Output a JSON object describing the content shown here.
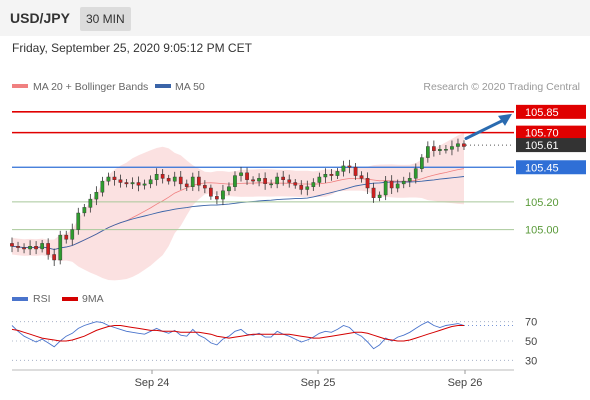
{
  "header": {
    "pair": "USD/JPY",
    "timeframe": "30 MIN"
  },
  "date_text": "Friday, September 25, 2020 9:05:12 PM CET",
  "legend": {
    "ma20_label": "MA 20 + Bollinger Bands",
    "ma50_label": "MA 50",
    "source": "Research © 2020 Trading Central"
  },
  "rsi_legend": {
    "rsi_label": "RSI",
    "ma_label": "9MA"
  },
  "colors": {
    "resistance": "#e00000",
    "support": "#2f6fd6",
    "target": "#2a6bb0",
    "green": "#5a9a3a",
    "bollinger": "#f8c8c8",
    "ma20": "#f08080",
    "ma50": "#3a64a8",
    "bull": "#2e9b2e",
    "bear": "#cc2020",
    "rsi": "#4a74cc",
    "rsi_ma": "#d40000"
  },
  "chart_data": [
    {
      "type": "candlestick",
      "ylim": [
        104.6,
        105.95
      ],
      "x_tick_labels": [
        "Sep 24",
        "Sep 25",
        "Sep 26"
      ],
      "levels": [
        {
          "value": 105.85,
          "label": "105.85",
          "style": "resistance"
        },
        {
          "value": 105.7,
          "label": "105.70",
          "style": "resistance"
        },
        {
          "value": 105.61,
          "label": "105.61",
          "style": "last"
        },
        {
          "value": 105.45,
          "label": "105.45",
          "style": "support"
        },
        {
          "value": 105.2,
          "label": "105.20",
          "style": "minor"
        },
        {
          "value": 105.0,
          "label": "105.00",
          "style": "minor"
        }
      ],
      "price": [
        104.88,
        104.87,
        104.86,
        104.88,
        104.86,
        104.9,
        104.82,
        104.78,
        104.96,
        104.93,
        105,
        105.12,
        105.16,
        105.22,
        105.27,
        105.35,
        105.38,
        105.36,
        105.34,
        105.33,
        105.34,
        105.32,
        105.33,
        105.36,
        105.4,
        105.37,
        105.35,
        105.38,
        105.33,
        105.31,
        105.38,
        105.32,
        105.3,
        105.24,
        105.22,
        105.28,
        105.31,
        105.39,
        105.41,
        105.36,
        105.35,
        105.37,
        105.33,
        105.33,
        105.38,
        105.36,
        105.34,
        105.32,
        105.29,
        105.31,
        105.34,
        105.38,
        105.4,
        105.39,
        105.42,
        105.46,
        105.45,
        105.39,
        105.37,
        105.3,
        105.23,
        105.25,
        105.35,
        105.3,
        105.33,
        105.35,
        105.37,
        105.44,
        105.52,
        105.6,
        105.57,
        105.58,
        105.58,
        105.6,
        105.62,
        105.6
      ]
    },
    {
      "type": "line",
      "title": "RSI",
      "ylim": [
        20,
        80
      ],
      "y_ticks": [
        70,
        50,
        30
      ],
      "series": [
        {
          "name": "RSI",
          "values": [
            66,
            60,
            55,
            52,
            49,
            52,
            48,
            44,
            50,
            55,
            58,
            63,
            66,
            68,
            70,
            69,
            66,
            64,
            62,
            60,
            59,
            58,
            57,
            60,
            63,
            60,
            58,
            61,
            56,
            55,
            62,
            56,
            53,
            48,
            46,
            52,
            55,
            60,
            62,
            57,
            56,
            58,
            54,
            54,
            60,
            57,
            55,
            52,
            49,
            51,
            54,
            58,
            60,
            59,
            62,
            66,
            64,
            58,
            55,
            49,
            42,
            46,
            53,
            50,
            54,
            56,
            59,
            63,
            67,
            70,
            66,
            64,
            66,
            67,
            68,
            66
          ]
        },
        {
          "name": "9MA",
          "values": [
            62,
            61,
            59,
            57,
            55,
            53,
            52,
            51,
            50,
            50,
            51,
            53,
            55,
            58,
            61,
            63,
            65,
            66,
            66,
            65,
            64,
            63,
            62,
            61,
            61,
            60,
            60,
            60,
            59,
            59,
            59,
            59,
            58,
            57,
            55,
            54,
            53,
            54,
            55,
            56,
            57,
            57,
            57,
            57,
            57,
            57,
            57,
            56,
            55,
            54,
            53,
            53,
            54,
            55,
            56,
            57,
            58,
            59,
            59,
            58,
            56,
            54,
            52,
            51,
            50,
            50,
            51,
            53,
            55,
            57,
            59,
            61,
            63,
            65,
            66,
            66
          ]
        }
      ]
    }
  ]
}
